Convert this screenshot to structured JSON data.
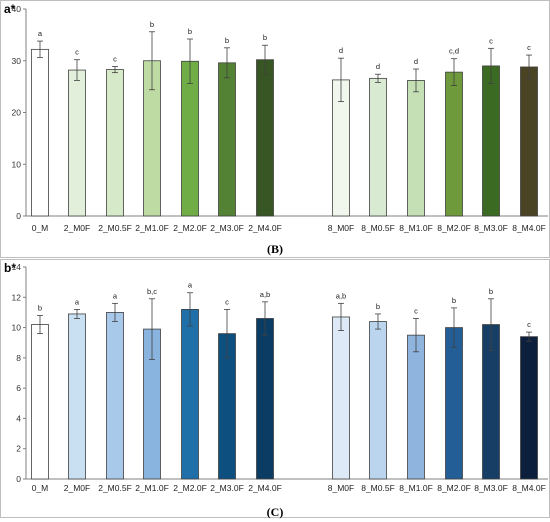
{
  "chart_data": [
    {
      "type": "bar",
      "title": "a*",
      "caption": "(B)",
      "ylim": [
        0,
        40
      ],
      "yticks": [
        0,
        10,
        20,
        30,
        40
      ],
      "grid": false,
      "categories": [
        "0_M",
        "2_M0F",
        "2_M0.5F",
        "2_M1.0F",
        "2_M2.0F",
        "2_M3.0F",
        "2_M4.0F",
        "8_M0F",
        "8_M0.5F",
        "8_M1.0F",
        "8_M2.0F",
        "8_M3.0F",
        "8_M4.0F"
      ],
      "values": [
        32.2,
        28.2,
        28.3,
        30.0,
        29.9,
        29.6,
        30.2,
        26.3,
        26.6,
        26.2,
        27.8,
        29.0,
        28.8
      ],
      "errors": [
        1.6,
        2.0,
        0.6,
        5.6,
        4.3,
        2.9,
        2.8,
        4.2,
        0.8,
        2.2,
        2.6,
        3.4,
        2.3
      ],
      "labels": [
        "a",
        "c",
        "c",
        "b",
        "b",
        "b",
        "b",
        "d",
        "d",
        "d",
        "c,d",
        "c",
        "c"
      ],
      "colors": [
        "#ffffff",
        "#e2efda",
        "#d6e9c8",
        "#bedba4",
        "#70ad47",
        "#548235",
        "#375623",
        "#f1f7ec",
        "#d9ead3",
        "#c5e0b4",
        "#6e9a3c",
        "#3b6b22",
        "#4b4424"
      ]
    },
    {
      "type": "bar",
      "title": "b*",
      "caption": "(C)",
      "ylim": [
        0,
        14
      ],
      "yticks": [
        0,
        2,
        4,
        6,
        8,
        10,
        12,
        14
      ],
      "grid": false,
      "categories": [
        "0_M",
        "2_M0F",
        "2_M0.5F",
        "2_M1.0F",
        "2_M2.0F",
        "2_M3.0F",
        "2_M4.0F",
        "8_M0F",
        "8_M0.5F",
        "8_M1.0F",
        "8_M2.0F",
        "8_M3.0F",
        "8_M4.0F"
      ],
      "values": [
        10.2,
        10.9,
        11.0,
        9.9,
        11.2,
        9.6,
        10.6,
        10.7,
        10.4,
        9.5,
        10.0,
        10.2,
        9.4
      ],
      "errors": [
        0.6,
        0.3,
        0.6,
        2.0,
        1.1,
        1.6,
        1.1,
        0.9,
        0.5,
        1.1,
        1.3,
        1.7,
        0.3
      ],
      "labels": [
        "b",
        "a",
        "a",
        "b,c",
        "a",
        "c",
        "a,b",
        "a,b",
        "b",
        "c",
        "b",
        "b",
        "c"
      ],
      "colors": [
        "#ffffff",
        "#c9dff2",
        "#a9c9ea",
        "#8ab4e0",
        "#1f6fa8",
        "#0d4f7e",
        "#0b3c63",
        "#dde9f6",
        "#bcd5ee",
        "#8fb4de",
        "#235f96",
        "#173f66",
        "#0c1f3d"
      ]
    }
  ]
}
